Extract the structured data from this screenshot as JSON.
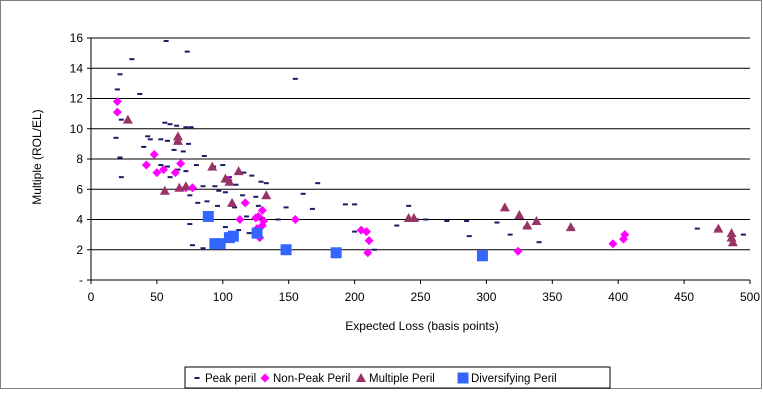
{
  "chart_data": {
    "type": "scatter",
    "title": "",
    "xlabel": "Expected Loss (basis points)",
    "ylabel": "Multiple (ROL/EL)",
    "xlim": [
      0,
      500
    ],
    "ylim": [
      0,
      16
    ],
    "x_ticks": [
      "0",
      "50",
      "100",
      "150",
      "200",
      "250",
      "300",
      "350",
      "400",
      "450",
      "500"
    ],
    "y_ticks": [
      "-",
      "2",
      "4",
      "6",
      "8",
      "10",
      "12",
      "14",
      "16"
    ],
    "grid": "horizontal",
    "legend_position": "bottom",
    "series": [
      {
        "name": "Peak peril",
        "marker": "dash",
        "color": "#1a1a66",
        "points": [
          [
            57,
            15.8
          ],
          [
            73,
            15.1
          ],
          [
            31,
            14.6
          ],
          [
            22,
            13.6
          ],
          [
            155,
            13.3
          ],
          [
            20,
            12.6
          ],
          [
            37,
            12.3
          ],
          [
            23,
            10.6
          ],
          [
            56,
            10.4
          ],
          [
            60,
            10.3
          ],
          [
            65,
            10.2
          ],
          [
            72,
            10.1
          ],
          [
            76,
            10.1
          ],
          [
            43,
            9.5
          ],
          [
            45,
            9.3
          ],
          [
            53,
            9.3
          ],
          [
            58,
            9.2
          ],
          [
            65,
            9.1
          ],
          [
            74,
            9.0
          ],
          [
            19,
            9.4
          ],
          [
            40,
            8.8
          ],
          [
            63,
            8.6
          ],
          [
            70,
            8.5
          ],
          [
            86,
            8.2
          ],
          [
            22,
            8.1
          ],
          [
            80,
            7.6
          ],
          [
            93,
            7.5
          ],
          [
            100,
            7.6
          ],
          [
            53,
            7.6
          ],
          [
            58,
            7.5
          ],
          [
            66,
            7.3
          ],
          [
            72,
            7.2
          ],
          [
            116,
            7.1
          ],
          [
            122,
            6.9
          ],
          [
            105,
            6.8
          ],
          [
            60,
            6.8
          ],
          [
            129,
            6.5
          ],
          [
            133,
            6.4
          ],
          [
            172,
            6.4
          ],
          [
            110,
            6.3
          ],
          [
            94,
            6.2
          ],
          [
            85,
            6.2
          ],
          [
            78,
            6.0
          ],
          [
            97,
            5.9
          ],
          [
            102,
            5.8
          ],
          [
            115,
            5.6
          ],
          [
            125,
            5.5
          ],
          [
            161,
            5.7
          ],
          [
            75,
            5.6
          ],
          [
            88,
            5.2
          ],
          [
            81,
            5.1
          ],
          [
            96,
            4.9
          ],
          [
            109,
            4.8
          ],
          [
            127,
            4.9
          ],
          [
            148,
            4.8
          ],
          [
            168,
            4.7
          ],
          [
            193,
            5.0
          ],
          [
            200,
            5.0
          ],
          [
            241,
            4.9
          ],
          [
            118,
            4.2
          ],
          [
            130,
            4.1
          ],
          [
            142,
            4.0
          ],
          [
            75,
            3.7
          ],
          [
            102,
            3.5
          ],
          [
            247,
            4.0
          ],
          [
            254,
            4.0
          ],
          [
            270,
            3.9
          ],
          [
            285,
            3.9
          ],
          [
            308,
            3.8
          ],
          [
            112,
            3.3
          ],
          [
            200,
            3.2
          ],
          [
            330,
            3.5
          ],
          [
            365,
            3.4
          ],
          [
            120,
            3.1
          ],
          [
            287,
            2.9
          ],
          [
            318,
            3.0
          ],
          [
            340,
            2.5
          ],
          [
            94,
            2.4
          ],
          [
            77,
            2.3
          ],
          [
            85,
            2.1
          ],
          [
            215,
            2.0
          ],
          [
            23,
            6.8
          ],
          [
            460,
            3.4
          ],
          [
            475,
            3.3
          ],
          [
            495,
            3.0
          ],
          [
            232,
            3.6
          ]
        ]
      },
      {
        "name": "Non-Peak Peril",
        "marker": "diamond",
        "color": "#ff00ff",
        "points": [
          [
            20,
            11.8
          ],
          [
            20,
            11.1
          ],
          [
            48,
            8.3
          ],
          [
            42,
            7.6
          ],
          [
            55,
            7.3
          ],
          [
            50,
            7.1
          ],
          [
            68,
            7.7
          ],
          [
            64,
            7.1
          ],
          [
            72,
            6.1
          ],
          [
            77,
            6.1
          ],
          [
            104,
            6.6
          ],
          [
            117,
            5.1
          ],
          [
            130,
            4.6
          ],
          [
            127,
            4.2
          ],
          [
            125,
            4.1
          ],
          [
            131,
            3.9
          ],
          [
            113,
            4.0
          ],
          [
            130,
            3.6
          ],
          [
            126,
            3.4
          ],
          [
            128,
            2.8
          ],
          [
            155,
            4.0
          ],
          [
            205,
            3.3
          ],
          [
            209,
            3.2
          ],
          [
            211,
            2.6
          ],
          [
            210,
            1.8
          ],
          [
            324,
            1.9
          ],
          [
            396,
            2.4
          ],
          [
            404,
            2.7
          ],
          [
            405,
            3.0
          ]
        ]
      },
      {
        "name": "Multiple Peril",
        "marker": "triangle",
        "color": "#993366",
        "points": [
          [
            28,
            10.6
          ],
          [
            66,
            9.5
          ],
          [
            66,
            9.2
          ],
          [
            92,
            7.5
          ],
          [
            102,
            6.7
          ],
          [
            105,
            6.5
          ],
          [
            112,
            7.2
          ],
          [
            133,
            5.6
          ],
          [
            56,
            5.9
          ],
          [
            67,
            6.1
          ],
          [
            72,
            6.2
          ],
          [
            107,
            5.1
          ],
          [
            241,
            4.1
          ],
          [
            245,
            4.1
          ],
          [
            314,
            4.8
          ],
          [
            325,
            4.3
          ],
          [
            338,
            3.9
          ],
          [
            331,
            3.6
          ],
          [
            364,
            3.5
          ],
          [
            476,
            3.4
          ],
          [
            486,
            3.1
          ],
          [
            486,
            2.8
          ],
          [
            487,
            2.5
          ]
        ]
      },
      {
        "name": "Diversifying Peril",
        "marker": "square",
        "color": "#3366ff",
        "points": [
          [
            89,
            4.2
          ],
          [
            94,
            2.4
          ],
          [
            98,
            2.4
          ],
          [
            105,
            2.8
          ],
          [
            108,
            2.9
          ],
          [
            126,
            3.1
          ],
          [
            148,
            2.0
          ],
          [
            186,
            1.8
          ],
          [
            297,
            1.6
          ]
        ]
      }
    ]
  }
}
